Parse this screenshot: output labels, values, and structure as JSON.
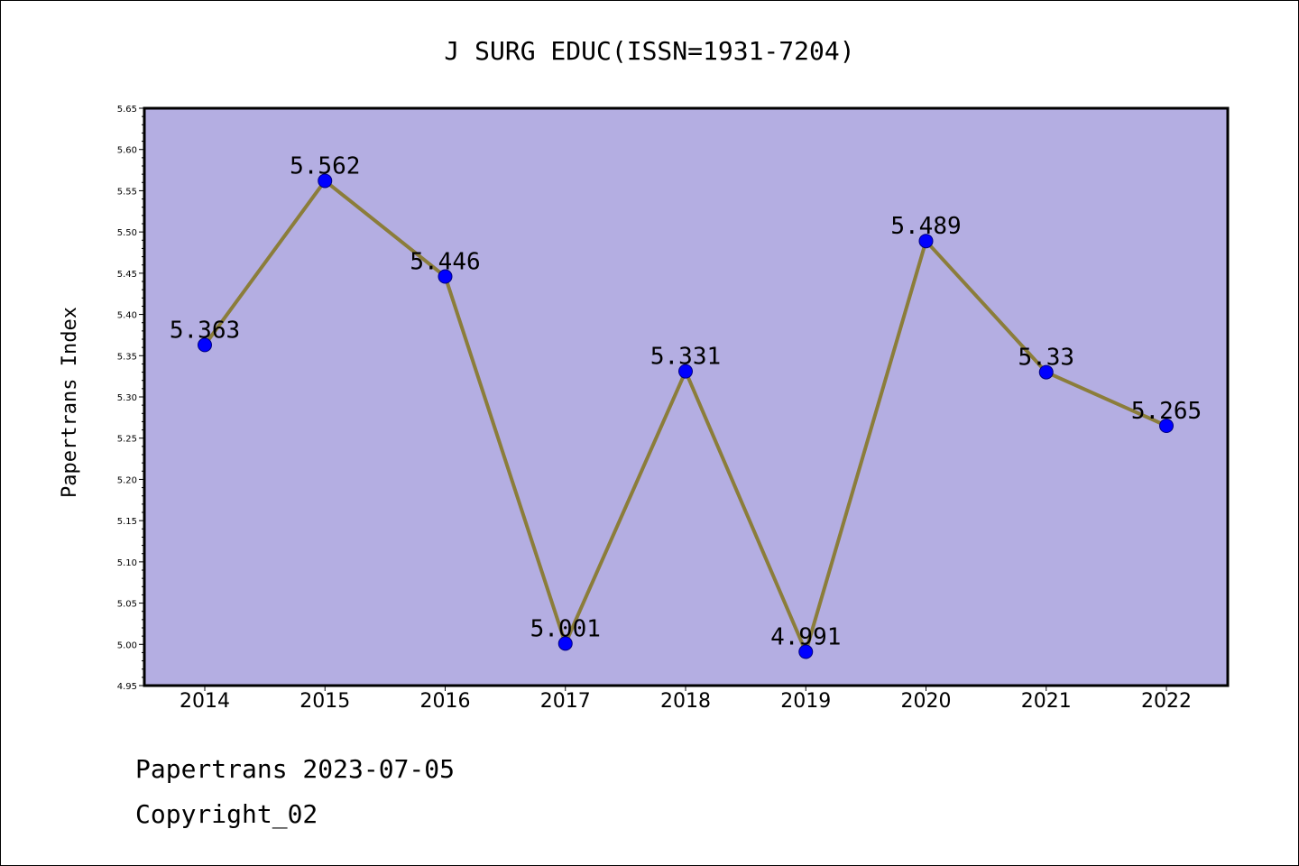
{
  "colors": {
    "plot_background": "#b4aee2",
    "line": "#8b7d3a",
    "marker": "#0000ff",
    "axis": "#000000"
  },
  "chart_data": {
    "type": "line",
    "title": "J SURG EDUC(ISSN=1931-7204)",
    "xlabel": "",
    "ylabel": "Papertrans Index",
    "categories": [
      "2014",
      "2015",
      "2016",
      "2017",
      "2018",
      "2019",
      "2020",
      "2021",
      "2022"
    ],
    "series": [
      {
        "values": [
          5.363,
          5.562,
          5.446,
          5.001,
          5.331,
          4.991,
          5.489,
          5.33,
          5.265
        ],
        "labels": [
          "5.363",
          "5.562",
          "5.446",
          "5.001",
          "5.331",
          "4.991",
          "5.489",
          "5.33",
          "5.265"
        ]
      }
    ],
    "ylim": [
      4.95,
      5.65
    ],
    "yticks": [
      "4.95",
      "5.00",
      "5.05",
      "5.10",
      "5.15",
      "5.20",
      "5.25",
      "5.30",
      "5.35",
      "5.40",
      "5.45",
      "5.50",
      "5.55",
      "5.60",
      "5.65"
    ],
    "grid": false,
    "legend": "none"
  },
  "footer": {
    "line1": "Papertrans 2023-07-05",
    "line2": "Copyright_02"
  }
}
